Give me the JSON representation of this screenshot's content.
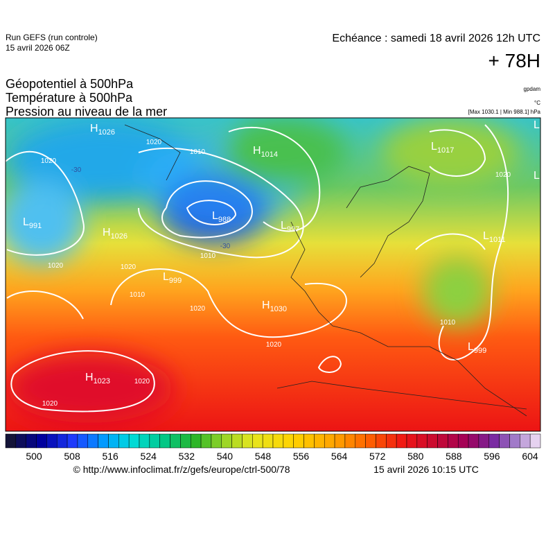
{
  "header": {
    "run": "Run GEFS (run controle)",
    "run_date": "15 avril 2026 06Z",
    "echeance": "Echéance : samedi 18 avril 2026 12h UTC",
    "lead": "+ 78H"
  },
  "titles": [
    "Géopotentiel à 500hPa",
    "Température à 500hPa",
    "Pression au niveau de la mer"
  ],
  "units": {
    "geopotential": "gpdam",
    "temperature": "°C",
    "pressure": "[Max 1030.1 | Min 988.1] hPa"
  },
  "centers": [
    {
      "letter": "H",
      "value": "1026"
    },
    {
      "letter": "L",
      "value": "991"
    },
    {
      "letter": "H",
      "value": "1026"
    },
    {
      "letter": "L",
      "value": "988"
    },
    {
      "letter": "L",
      "value": "997"
    },
    {
      "letter": "H",
      "value": "1014"
    },
    {
      "letter": "L",
      "value": "999"
    },
    {
      "letter": "H",
      "value": "1030"
    },
    {
      "letter": "H",
      "value": "1023"
    },
    {
      "letter": "L",
      "value": "1017"
    },
    {
      "letter": "L",
      "value": "1011"
    },
    {
      "letter": "L",
      "value": "999"
    },
    {
      "letter": "L"
    },
    {
      "letter": "L"
    }
  ],
  "isobar_labels": [
    "1020",
    "1020",
    "1010",
    "1020",
    "1010",
    "1020",
    "1010",
    "1020",
    "1020",
    "1020",
    "1020",
    "1020",
    "1010",
    "-30",
    "-30"
  ],
  "colorbar": {
    "labels": [
      500,
      508,
      516,
      524,
      532,
      540,
      548,
      556,
      564,
      572,
      580,
      588,
      596,
      604
    ]
  },
  "footer": {
    "url": "© http://www.infoclimat.fr/z/gefs/europe/ctrl-500/78",
    "time": "15 avril 2026 10:15 UTC"
  }
}
